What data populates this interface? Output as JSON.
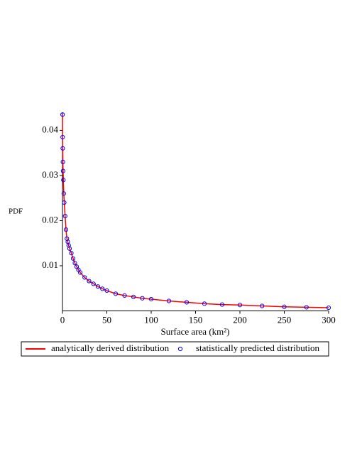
{
  "chart_data": {
    "type": "line-scatter",
    "xlabel": "Surface area (km²)",
    "ylabel": "PDF",
    "x": [
      0.1,
      0.2,
      0.3,
      0.5,
      0.7,
      1,
      1.5,
      2,
      3,
      4,
      5,
      6,
      7,
      8,
      10,
      12,
      14,
      16,
      18,
      20,
      25,
      30,
      35,
      40,
      45,
      50,
      60,
      70,
      80,
      90,
      100,
      120,
      140,
      160,
      180,
      200,
      225,
      250,
      275,
      300
    ],
    "series": [
      {
        "name": "analytically derived distribution",
        "kind": "line",
        "color": "#ff0000",
        "values": [
          0.0435,
          0.0385,
          0.036,
          0.033,
          0.031,
          0.029,
          0.026,
          0.024,
          0.021,
          0.018,
          0.016,
          0.0153,
          0.0145,
          0.0138,
          0.0128,
          0.0116,
          0.0106,
          0.0098,
          0.0091,
          0.0085,
          0.0074,
          0.0066,
          0.006,
          0.0054,
          0.0049,
          0.0045,
          0.0038,
          0.0034,
          0.0031,
          0.0028,
          0.0026,
          0.0022,
          0.0019,
          0.0016,
          0.0014,
          0.0013,
          0.0011,
          0.0009,
          0.0008,
          0.0007
        ]
      },
      {
        "name": "statistically predicted distribution",
        "kind": "scatter",
        "color": "#0000ff",
        "values": [
          0.0435,
          0.0385,
          0.036,
          0.033,
          0.031,
          0.029,
          0.026,
          0.024,
          0.021,
          0.018,
          0.016,
          0.0153,
          0.0145,
          0.0138,
          0.0128,
          0.0116,
          0.0106,
          0.0098,
          0.0091,
          0.0085,
          0.0074,
          0.0066,
          0.006,
          0.0054,
          0.0049,
          0.0045,
          0.0038,
          0.0034,
          0.0031,
          0.0028,
          0.0026,
          0.0022,
          0.0019,
          0.0016,
          0.0014,
          0.0013,
          0.0011,
          0.0009,
          0.0008,
          0.0007
        ]
      }
    ],
    "xlim": [
      0,
      300
    ],
    "xticks": [
      0,
      50,
      100,
      150,
      200,
      250,
      300
    ],
    "ylim": [
      0,
      0.044
    ],
    "yticks": [
      0.01,
      0.02,
      0.03,
      0.04
    ],
    "legend": "bottom"
  }
}
